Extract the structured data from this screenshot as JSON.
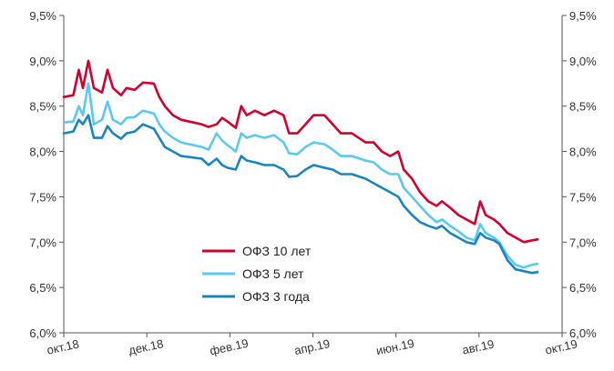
{
  "chart_data": {
    "type": "line",
    "ylim": [
      6.0,
      9.5
    ],
    "y_ticks": [
      "6,0%",
      "6,5%",
      "7,0%",
      "7,5%",
      "8,0%",
      "8,5%",
      "9,0%",
      "9,5%"
    ],
    "x_ticks": [
      "окт.18",
      "дек.18",
      "фев.19",
      "апр.19",
      "июн.19",
      "авг.19",
      "окт.19"
    ],
    "x_range": [
      "2018-10-01",
      "2019-10-01"
    ],
    "grid": false,
    "legend_position": "bottom-center",
    "series": [
      {
        "name": "ОФЗ 10 лет",
        "color": "#d2002d",
        "points": [
          [
            "2018-10-01",
            8.6
          ],
          [
            "2018-10-08",
            8.62
          ],
          [
            "2018-10-12",
            8.9
          ],
          [
            "2018-10-15",
            8.7
          ],
          [
            "2018-10-19",
            9.0
          ],
          [
            "2018-10-23",
            8.7
          ],
          [
            "2018-10-29",
            8.65
          ],
          [
            "2018-11-02",
            8.9
          ],
          [
            "2018-11-06",
            8.7
          ],
          [
            "2018-11-12",
            8.62
          ],
          [
            "2018-11-16",
            8.7
          ],
          [
            "2018-11-22",
            8.68
          ],
          [
            "2018-11-28",
            8.76
          ],
          [
            "2018-12-06",
            8.75
          ],
          [
            "2018-12-10",
            8.6
          ],
          [
            "2018-12-14",
            8.5
          ],
          [
            "2018-12-20",
            8.4
          ],
          [
            "2018-12-26",
            8.35
          ],
          [
            "2019-01-10",
            8.3
          ],
          [
            "2019-01-15",
            8.27
          ],
          [
            "2019-01-21",
            8.3
          ],
          [
            "2019-01-25",
            8.37
          ],
          [
            "2019-01-29",
            8.33
          ],
          [
            "2019-02-04",
            8.26
          ],
          [
            "2019-02-08",
            8.5
          ],
          [
            "2019-02-12",
            8.4
          ],
          [
            "2019-02-18",
            8.45
          ],
          [
            "2019-02-25",
            8.4
          ],
          [
            "2019-03-04",
            8.45
          ],
          [
            "2019-03-11",
            8.4
          ],
          [
            "2019-03-15",
            8.2
          ],
          [
            "2019-03-21",
            8.2
          ],
          [
            "2019-03-27",
            8.3
          ],
          [
            "2019-04-02",
            8.4
          ],
          [
            "2019-04-10",
            8.4
          ],
          [
            "2019-04-16",
            8.3
          ],
          [
            "2019-04-22",
            8.2
          ],
          [
            "2019-04-30",
            8.2
          ],
          [
            "2019-05-10",
            8.1
          ],
          [
            "2019-05-16",
            8.1
          ],
          [
            "2019-05-22",
            8.0
          ],
          [
            "2019-05-28",
            7.95
          ],
          [
            "2019-06-03",
            8.0
          ],
          [
            "2019-06-07",
            7.8
          ],
          [
            "2019-06-13",
            7.7
          ],
          [
            "2019-06-19",
            7.55
          ],
          [
            "2019-06-25",
            7.45
          ],
          [
            "2019-07-01",
            7.4
          ],
          [
            "2019-07-05",
            7.45
          ],
          [
            "2019-07-11",
            7.38
          ],
          [
            "2019-07-17",
            7.3
          ],
          [
            "2019-07-23",
            7.25
          ],
          [
            "2019-07-29",
            7.2
          ],
          [
            "2019-08-02",
            7.45
          ],
          [
            "2019-08-06",
            7.3
          ],
          [
            "2019-08-12",
            7.25
          ],
          [
            "2019-08-16",
            7.2
          ],
          [
            "2019-08-22",
            7.1
          ],
          [
            "2019-08-28",
            7.05
          ],
          [
            "2019-09-03",
            7.0
          ],
          [
            "2019-09-09",
            7.02
          ],
          [
            "2019-09-13",
            7.03
          ]
        ]
      },
      {
        "name": "ОФЗ 5 лет",
        "color": "#5bc8f2",
        "points": [
          [
            "2018-10-01",
            8.32
          ],
          [
            "2018-10-08",
            8.33
          ],
          [
            "2018-10-12",
            8.5
          ],
          [
            "2018-10-15",
            8.4
          ],
          [
            "2018-10-19",
            8.75
          ],
          [
            "2018-10-23",
            8.3
          ],
          [
            "2018-10-29",
            8.35
          ],
          [
            "2018-11-02",
            8.55
          ],
          [
            "2018-11-06",
            8.35
          ],
          [
            "2018-11-12",
            8.3
          ],
          [
            "2018-11-16",
            8.37
          ],
          [
            "2018-11-22",
            8.38
          ],
          [
            "2018-11-28",
            8.45
          ],
          [
            "2018-12-06",
            8.42
          ],
          [
            "2018-12-10",
            8.3
          ],
          [
            "2018-12-14",
            8.22
          ],
          [
            "2018-12-20",
            8.15
          ],
          [
            "2018-12-26",
            8.1
          ],
          [
            "2019-01-10",
            8.05
          ],
          [
            "2019-01-15",
            8.02
          ],
          [
            "2019-01-21",
            8.2
          ],
          [
            "2019-01-25",
            8.12
          ],
          [
            "2019-01-29",
            8.07
          ],
          [
            "2019-02-04",
            8.0
          ],
          [
            "2019-02-08",
            8.2
          ],
          [
            "2019-02-12",
            8.15
          ],
          [
            "2019-02-18",
            8.18
          ],
          [
            "2019-02-25",
            8.15
          ],
          [
            "2019-03-04",
            8.18
          ],
          [
            "2019-03-11",
            8.1
          ],
          [
            "2019-03-15",
            7.98
          ],
          [
            "2019-03-21",
            7.97
          ],
          [
            "2019-03-27",
            8.05
          ],
          [
            "2019-04-02",
            8.1
          ],
          [
            "2019-04-10",
            8.08
          ],
          [
            "2019-04-16",
            8.02
          ],
          [
            "2019-04-22",
            7.95
          ],
          [
            "2019-04-30",
            7.95
          ],
          [
            "2019-05-10",
            7.9
          ],
          [
            "2019-05-16",
            7.88
          ],
          [
            "2019-05-22",
            7.8
          ],
          [
            "2019-05-28",
            7.75
          ],
          [
            "2019-06-03",
            7.75
          ],
          [
            "2019-06-07",
            7.6
          ],
          [
            "2019-06-13",
            7.5
          ],
          [
            "2019-06-19",
            7.4
          ],
          [
            "2019-06-25",
            7.3
          ],
          [
            "2019-07-01",
            7.22
          ],
          [
            "2019-07-05",
            7.25
          ],
          [
            "2019-07-11",
            7.18
          ],
          [
            "2019-07-17",
            7.12
          ],
          [
            "2019-07-23",
            7.05
          ],
          [
            "2019-07-29",
            7.02
          ],
          [
            "2019-08-02",
            7.2
          ],
          [
            "2019-08-06",
            7.1
          ],
          [
            "2019-08-12",
            7.05
          ],
          [
            "2019-08-16",
            7.0
          ],
          [
            "2019-08-22",
            6.85
          ],
          [
            "2019-08-28",
            6.75
          ],
          [
            "2019-09-03",
            6.72
          ],
          [
            "2019-09-09",
            6.75
          ],
          [
            "2019-09-13",
            6.76
          ]
        ]
      },
      {
        "name": "ОФЗ 3 года",
        "color": "#1a84bf",
        "points": [
          [
            "2018-10-01",
            8.2
          ],
          [
            "2018-10-08",
            8.22
          ],
          [
            "2018-10-12",
            8.35
          ],
          [
            "2018-10-15",
            8.3
          ],
          [
            "2018-10-19",
            8.4
          ],
          [
            "2018-10-23",
            8.15
          ],
          [
            "2018-10-29",
            8.15
          ],
          [
            "2018-11-02",
            8.28
          ],
          [
            "2018-11-06",
            8.2
          ],
          [
            "2018-11-12",
            8.14
          ],
          [
            "2018-11-16",
            8.2
          ],
          [
            "2018-11-22",
            8.22
          ],
          [
            "2018-11-28",
            8.3
          ],
          [
            "2018-12-06",
            8.25
          ],
          [
            "2018-12-10",
            8.15
          ],
          [
            "2018-12-14",
            8.05
          ],
          [
            "2018-12-20",
            8.0
          ],
          [
            "2018-12-26",
            7.95
          ],
          [
            "2019-01-10",
            7.92
          ],
          [
            "2019-01-15",
            7.85
          ],
          [
            "2019-01-21",
            7.92
          ],
          [
            "2019-01-25",
            7.85
          ],
          [
            "2019-01-29",
            7.82
          ],
          [
            "2019-02-04",
            7.8
          ],
          [
            "2019-02-08",
            7.95
          ],
          [
            "2019-02-12",
            7.9
          ],
          [
            "2019-02-18",
            7.88
          ],
          [
            "2019-02-25",
            7.85
          ],
          [
            "2019-03-04",
            7.85
          ],
          [
            "2019-03-11",
            7.8
          ],
          [
            "2019-03-15",
            7.72
          ],
          [
            "2019-03-21",
            7.73
          ],
          [
            "2019-03-27",
            7.8
          ],
          [
            "2019-04-02",
            7.85
          ],
          [
            "2019-04-10",
            7.82
          ],
          [
            "2019-04-16",
            7.8
          ],
          [
            "2019-04-22",
            7.75
          ],
          [
            "2019-04-30",
            7.75
          ],
          [
            "2019-05-10",
            7.7
          ],
          [
            "2019-05-16",
            7.65
          ],
          [
            "2019-05-22",
            7.6
          ],
          [
            "2019-05-28",
            7.55
          ],
          [
            "2019-06-03",
            7.5
          ],
          [
            "2019-06-07",
            7.4
          ],
          [
            "2019-06-13",
            7.3
          ],
          [
            "2019-06-19",
            7.22
          ],
          [
            "2019-06-25",
            7.18
          ],
          [
            "2019-07-01",
            7.15
          ],
          [
            "2019-07-05",
            7.18
          ],
          [
            "2019-07-11",
            7.1
          ],
          [
            "2019-07-17",
            7.05
          ],
          [
            "2019-07-23",
            7.0
          ],
          [
            "2019-07-29",
            6.98
          ],
          [
            "2019-08-02",
            7.1
          ],
          [
            "2019-08-06",
            7.05
          ],
          [
            "2019-08-12",
            7.02
          ],
          [
            "2019-08-16",
            6.98
          ],
          [
            "2019-08-22",
            6.8
          ],
          [
            "2019-08-28",
            6.7
          ],
          [
            "2019-09-03",
            6.68
          ],
          [
            "2019-09-09",
            6.66
          ],
          [
            "2019-09-13",
            6.67
          ]
        ]
      }
    ]
  }
}
